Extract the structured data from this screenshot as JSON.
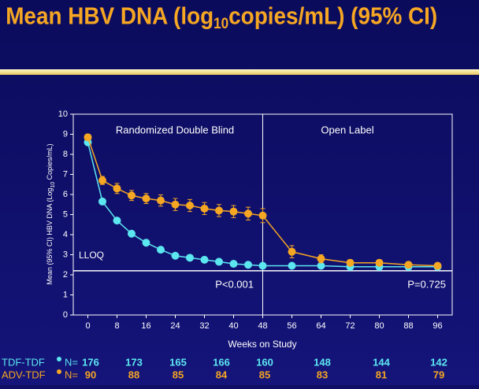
{
  "chart_data": {
    "type": "line",
    "title_parts": [
      "Mean HBV DNA (log",
      "10",
      "copies/mL) (95% CI)"
    ],
    "y_label_parts": [
      "Mean (95% CI) HBV DNA (Log",
      "10",
      " Copies/mL)"
    ],
    "x_label": "Weeks on Study",
    "x": [
      0,
      4,
      8,
      12,
      16,
      20,
      24,
      28,
      32,
      36,
      40,
      44,
      48,
      56,
      64,
      72,
      80,
      88,
      96
    ],
    "xlim": [
      -4,
      100
    ],
    "xticks": [
      0,
      8,
      16,
      24,
      32,
      40,
      48,
      56,
      64,
      72,
      80,
      88,
      96
    ],
    "ylim": [
      0,
      10
    ],
    "yticks": [
      0,
      1,
      2,
      3,
      4,
      5,
      6,
      7,
      8,
      9,
      10
    ],
    "series": [
      {
        "name": "TDF-TDF",
        "color": "#5ce6f0",
        "values": [
          8.6,
          5.65,
          4.7,
          4.05,
          3.6,
          3.25,
          2.95,
          2.85,
          2.75,
          2.65,
          2.55,
          2.5,
          2.45,
          2.45,
          2.45,
          2.4,
          2.4,
          2.4,
          2.4
        ]
      },
      {
        "name": "ADV-TDF",
        "color": "#f5a623",
        "values": [
          8.85,
          6.7,
          6.3,
          5.95,
          5.8,
          5.7,
          5.5,
          5.45,
          5.3,
          5.2,
          5.15,
          5.05,
          4.95,
          3.15,
          2.8,
          2.6,
          2.6,
          2.5,
          2.45
        ],
        "errors": [
          0.15,
          0.2,
          0.25,
          0.25,
          0.25,
          0.28,
          0.3,
          0.3,
          0.3,
          0.3,
          0.3,
          0.32,
          0.35,
          0.3,
          0.2,
          0.15,
          0.15,
          0.1,
          0.1
        ]
      }
    ],
    "lloq": {
      "value": 2.2,
      "label": "LLOQ"
    },
    "divider_week": 48,
    "annotations": [
      "Randomized Double Blind",
      "Open Label",
      "P<0.001",
      "P=0.725"
    ],
    "n_label": "N=",
    "n_table": [
      [
        176,
        173,
        165,
        166,
        160,
        148,
        144,
        142
      ],
      [
        90,
        88,
        85,
        84,
        85,
        83,
        81,
        79
      ]
    ]
  }
}
